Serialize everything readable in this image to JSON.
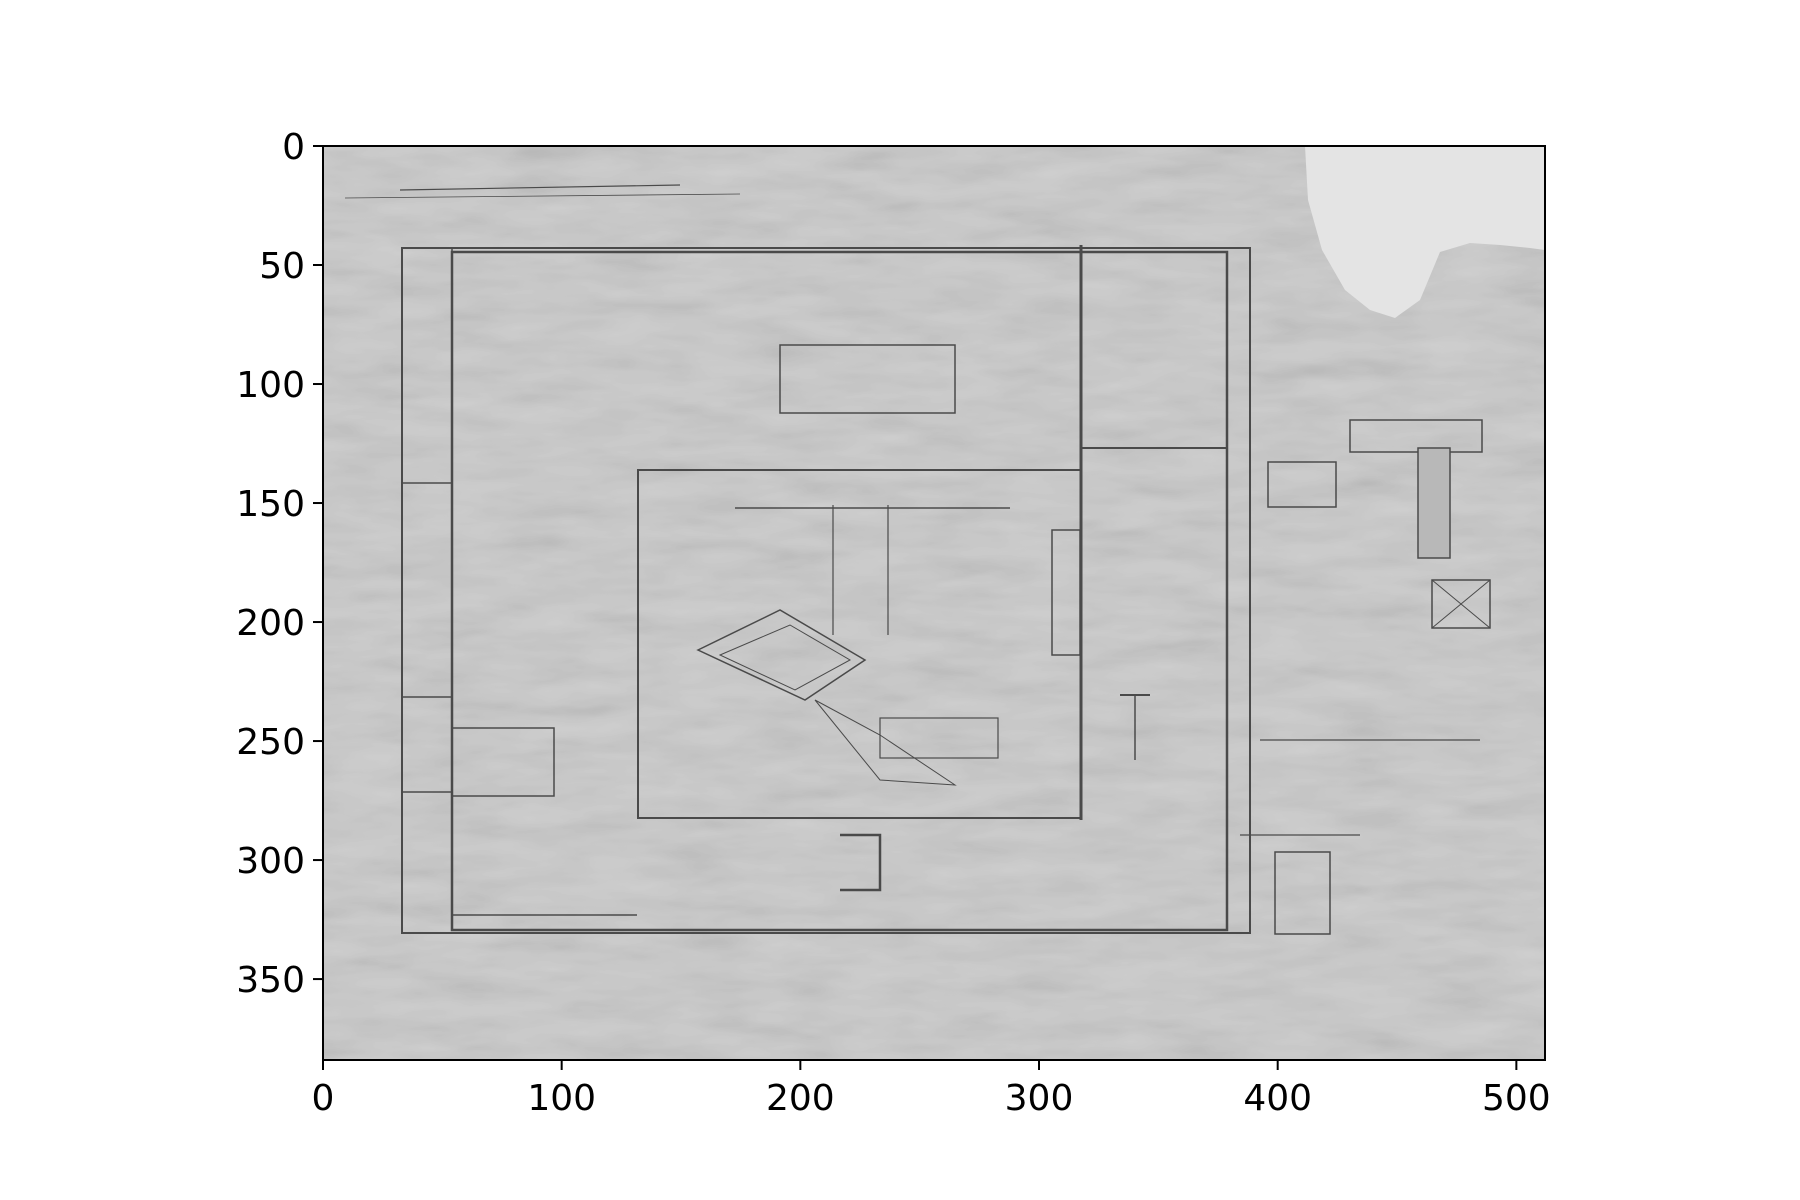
{
  "figure": {
    "kind": "image-plot",
    "image_description": "architectural plan",
    "image_tone": "grayscale",
    "colors": {
      "paper": "#cfcfcf",
      "paper_light": "#e4e4e4",
      "ink": "#4a4a4a",
      "frame": "#000000",
      "background": "#ffffff"
    },
    "x_axis": {
      "range": [
        0,
        512
      ],
      "ticks": [
        0,
        100,
        200,
        300,
        400,
        500
      ],
      "tick_labels": [
        "0",
        "100",
        "200",
        "300",
        "400",
        "500"
      ]
    },
    "y_axis": {
      "range": [
        0,
        384
      ],
      "inverted": true,
      "ticks": [
        0,
        50,
        100,
        150,
        200,
        250,
        300,
        350
      ],
      "tick_labels": [
        "0",
        "50",
        "100",
        "150",
        "200",
        "250",
        "300",
        "350"
      ]
    }
  }
}
